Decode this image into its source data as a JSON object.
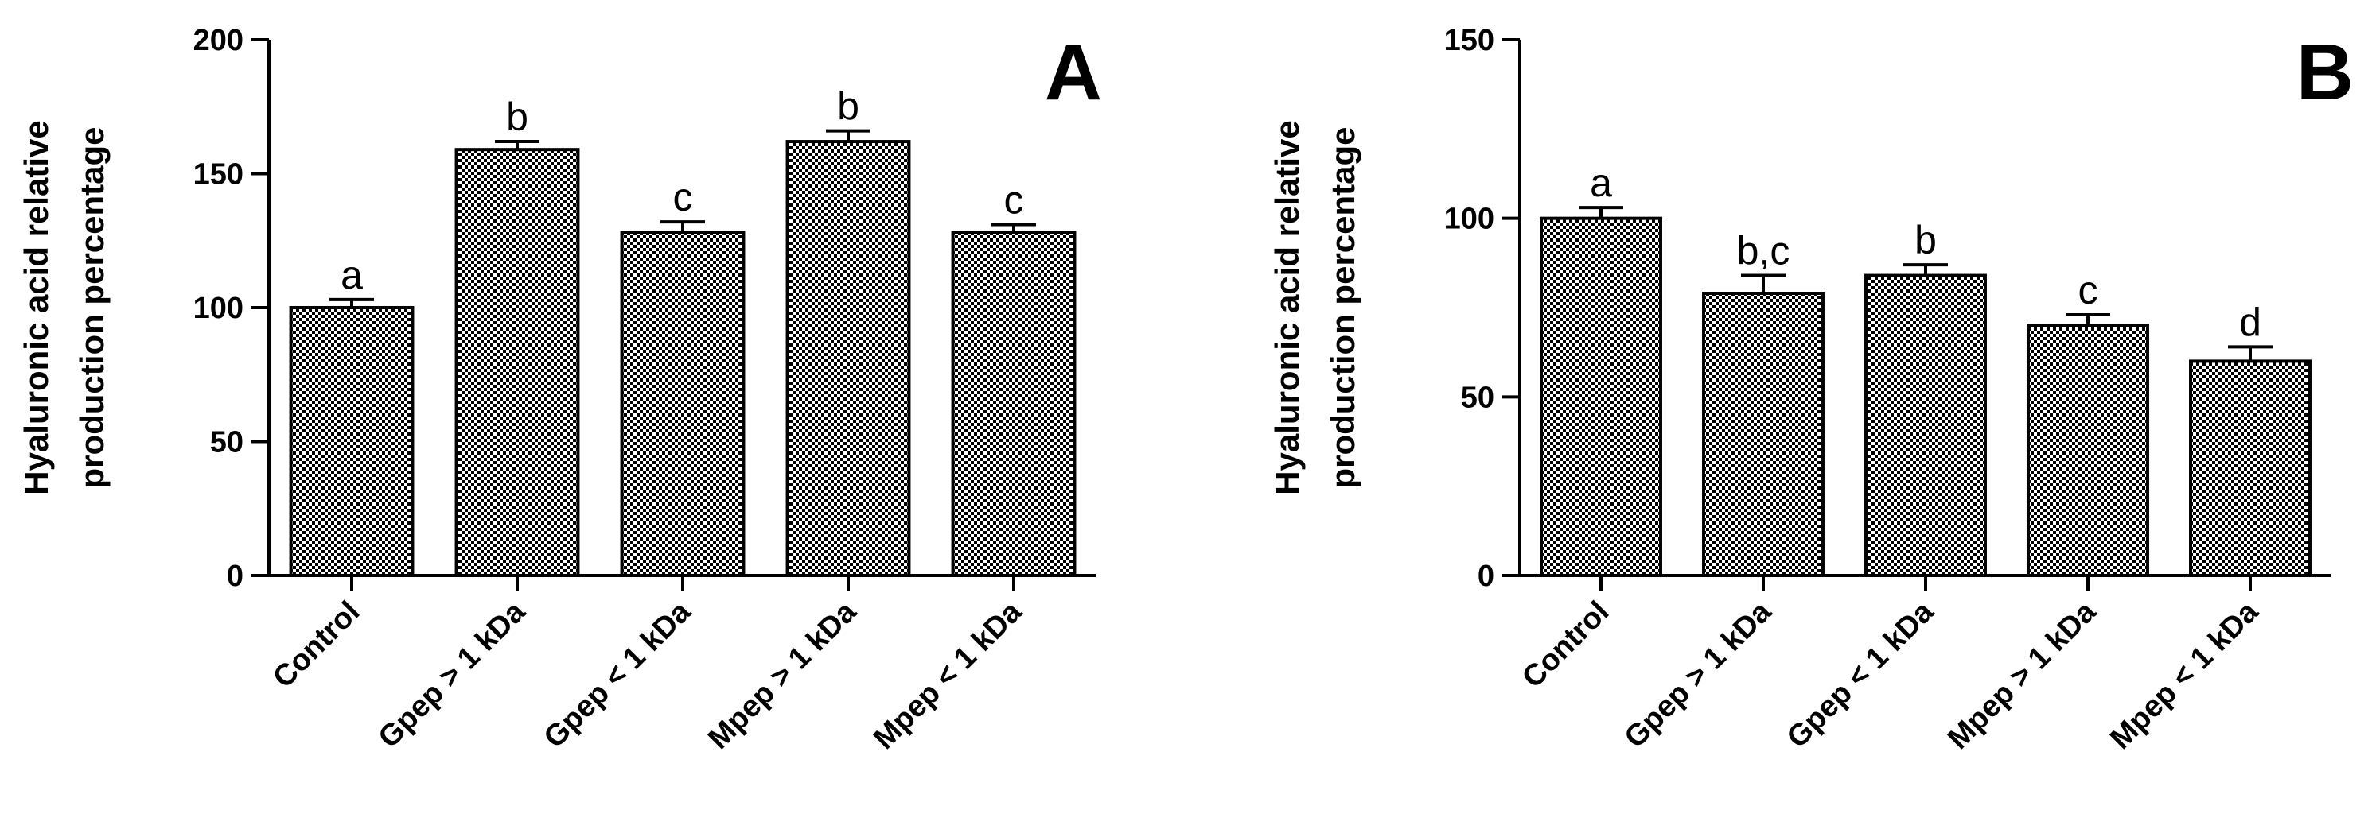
{
  "chart_data": [
    {
      "type": "bar",
      "panel_label": "A",
      "categories": [
        "Control",
        "Gpep > 1 kDa",
        "Gpep < 1 kDa",
        "Mpep > 1 kDa",
        "Mpep < 1 kDa"
      ],
      "values": [
        100,
        159,
        128,
        162,
        128
      ],
      "errors": [
        3,
        3,
        4,
        4,
        3
      ],
      "significance": [
        "a",
        "b",
        "c",
        "b",
        "c"
      ],
      "ylabel_lines": [
        "Hyaluronic acid relative",
        "production percentage"
      ],
      "ylim": [
        0,
        200
      ],
      "yticks": [
        0,
        50,
        100,
        150,
        200
      ],
      "grid": false,
      "bar_fill": "checkerboard",
      "bar_colors": [
        "#000000",
        "#ffffff"
      ]
    },
    {
      "type": "bar",
      "panel_label": "B",
      "categories": [
        "Control",
        "Gpep > 1 kDa",
        "Gpep < 1 kDa",
        "Mpep > 1 kDa",
        "Mpep < 1 kDa"
      ],
      "values": [
        100,
        79,
        84,
        70,
        60
      ],
      "errors": [
        3,
        5,
        3,
        3,
        4
      ],
      "significance": [
        "a",
        "b,c",
        "b",
        "c",
        "d"
      ],
      "ylabel_lines": [
        "Hyaluronic acid relative",
        "production percentage"
      ],
      "ylim": [
        0,
        150
      ],
      "yticks": [
        0,
        50,
        100,
        150
      ],
      "grid": false,
      "bar_fill": "checkerboard",
      "bar_colors": [
        "#000000",
        "#ffffff"
      ]
    }
  ]
}
